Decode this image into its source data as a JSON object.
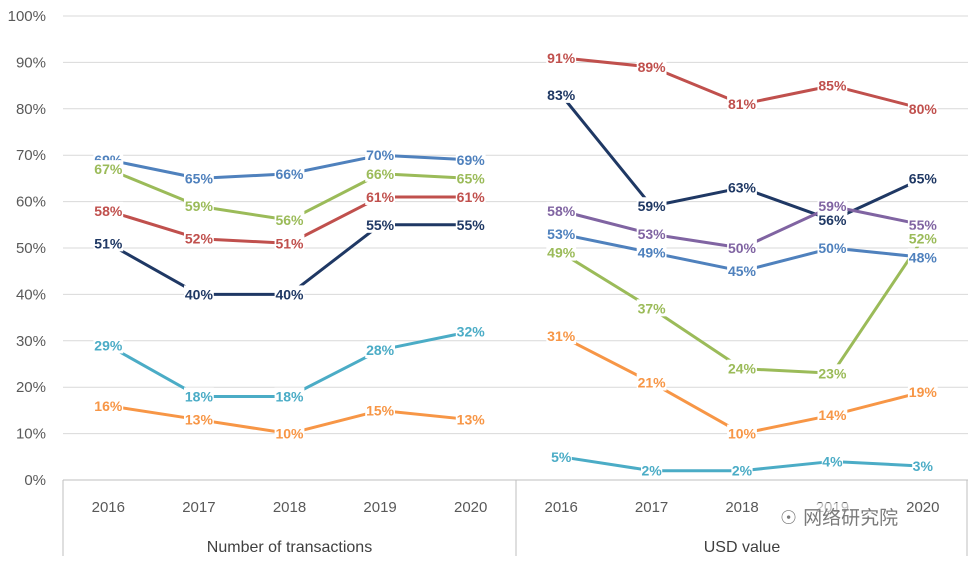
{
  "chart_data": {
    "type": "line",
    "y_ticks": [
      "0%",
      "10%",
      "20%",
      "30%",
      "40%",
      "50%",
      "60%",
      "70%",
      "80%",
      "90%",
      "100%"
    ],
    "ylim": [
      0,
      100
    ],
    "grid": true,
    "legend": "none",
    "panels": [
      {
        "group_label": "Number of transactions",
        "categories": [
          "2016",
          "2017",
          "2018",
          "2019",
          "2020"
        ],
        "series": [
          {
            "color": "#4F81BD",
            "values": [
              69,
              65,
              66,
              70,
              69
            ]
          },
          {
            "color": "#9BBB59",
            "values": [
              67,
              59,
              56,
              66,
              65
            ]
          },
          {
            "color": "#C0504D",
            "values": [
              58,
              52,
              51,
              61,
              61
            ]
          },
          {
            "color": "#1F3864",
            "values": [
              51,
              40,
              40,
              55,
              55
            ]
          },
          {
            "color": "#4BACC6",
            "values": [
              29,
              18,
              18,
              28,
              32
            ]
          },
          {
            "color": "#F79646",
            "values": [
              16,
              13,
              10,
              15,
              13
            ]
          }
        ]
      },
      {
        "group_label": "USD value",
        "categories": [
          "2016",
          "2017",
          "2018",
          "2019",
          "2020"
        ],
        "series": [
          {
            "color": "#C0504D",
            "values": [
              91,
              89,
              81,
              85,
              80
            ]
          },
          {
            "color": "#1F3864",
            "values": [
              83,
              59,
              63,
              56,
              65
            ]
          },
          {
            "color": "#8064A2",
            "values": [
              58,
              53,
              50,
              59,
              55
            ]
          },
          {
            "color": "#4F81BD",
            "values": [
              53,
              49,
              45,
              50,
              48
            ]
          },
          {
            "color": "#9BBB59",
            "values": [
              49,
              37,
              24,
              23,
              52
            ]
          },
          {
            "color": "#F79646",
            "values": [
              31,
              21,
              10,
              14,
              19
            ]
          },
          {
            "color": "#4BACC6",
            "values": [
              5,
              2,
              2,
              4,
              3
            ]
          }
        ]
      }
    ]
  },
  "watermark": {
    "text": "网络研究院",
    "icon": "wechat-icon"
  }
}
